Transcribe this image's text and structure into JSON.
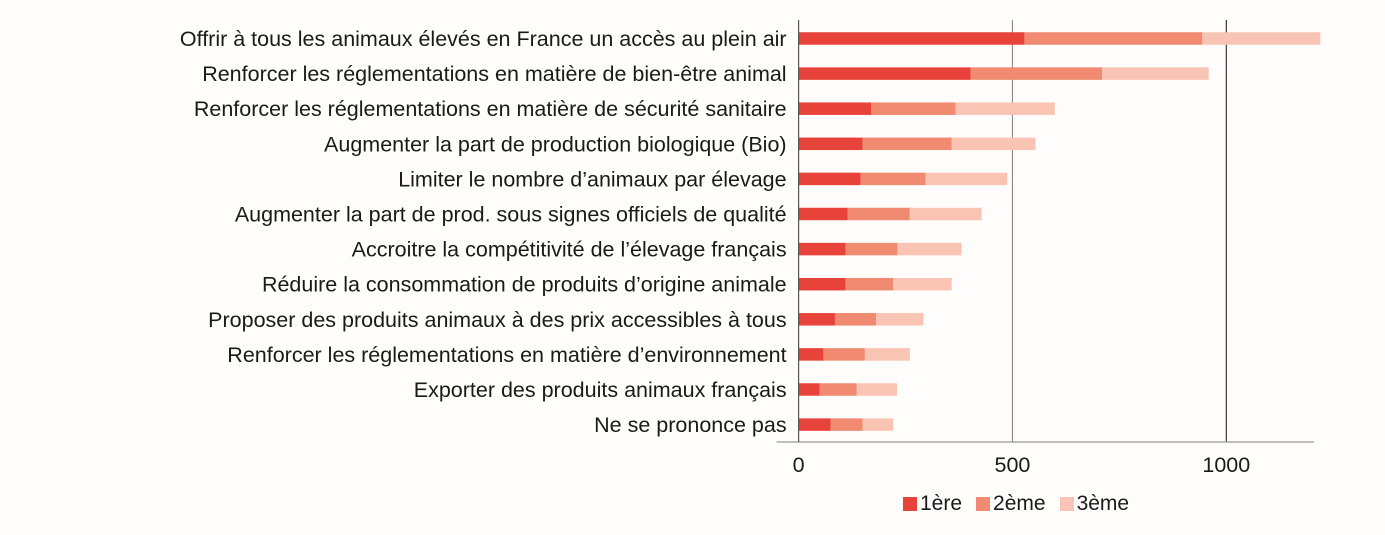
{
  "chart_data": {
    "type": "bar",
    "orientation": "horizontal",
    "stacked": true,
    "title": "",
    "xlabel": "",
    "ylabel": "",
    "xlim": [
      0,
      1200
    ],
    "xticks": [
      0,
      500,
      1000
    ],
    "tick_labels": [
      "0",
      "500",
      "1000"
    ],
    "grid": true,
    "legend_position": "bottom",
    "categories": [
      "Offrir à tous les animaux élevés en France un accès au plein air",
      "Renforcer les réglementations en matière de bien-être animal",
      "Renforcer les réglementations en matière de sécurité sanitaire",
      "Augmenter la part de production biologique (Bio)",
      "Limiter le nombre d’animaux par élevage",
      "Augmenter la part de prod. sous signes officiels de qualité",
      "Accroitre la compétitivité de l’élevage français",
      "Réduire la consommation de produits d’origine animale",
      "Proposer des produits animaux à des prix accessibles à tous",
      "Renforcer les réglementations en matière d’environnement",
      "Exporter des produits animaux français",
      "Ne se prononce pas"
    ],
    "series": [
      {
        "name": "1ère",
        "color": "#e8433a",
        "values": [
          528,
          402,
          170,
          150,
          145,
          115,
          110,
          110,
          85,
          58,
          49,
          75
        ]
      },
      {
        "name": "2ème",
        "color": "#f08a70",
        "values": [
          416,
          308,
          197,
          208,
          152,
          145,
          121,
          111,
          96,
          97,
          87,
          75
        ]
      },
      {
        "name": "3ème",
        "color": "#f9c4b3",
        "values": [
          276,
          249,
          232,
          196,
          191,
          168,
          150,
          137,
          111,
          105,
          94,
          71
        ]
      }
    ]
  }
}
